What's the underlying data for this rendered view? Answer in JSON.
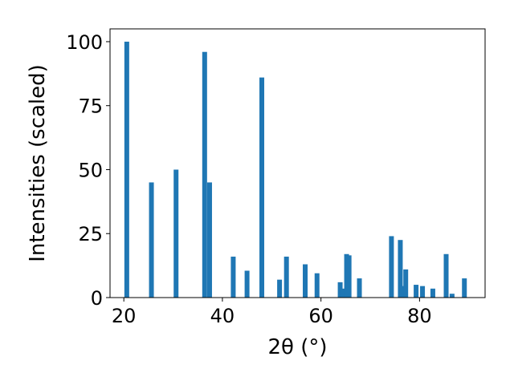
{
  "chart_data": {
    "type": "bar",
    "xlabel": "2θ (°)",
    "ylabel": "Intensities (scaled)",
    "xlim": [
      17.2,
      93.3
    ],
    "ylim": [
      0,
      105
    ],
    "xticks": [
      20,
      40,
      60,
      80
    ],
    "yticks": [
      0,
      25,
      50,
      75,
      100
    ],
    "bar_color": "#1f77b4",
    "grid": false,
    "x": [
      20.6,
      25.6,
      30.6,
      36.4,
      37.4,
      42.2,
      45.0,
      48.0,
      51.6,
      53.0,
      56.8,
      59.2,
      63.9,
      64.6,
      65.2,
      65.7,
      67.8,
      74.3,
      76.1,
      76.5,
      77.2,
      79.3,
      80.6,
      82.7,
      85.4,
      86.6,
      89.1
    ],
    "values": [
      100,
      45,
      50,
      96,
      45,
      16,
      10.5,
      86,
      7,
      16,
      13,
      9.5,
      6,
      3.5,
      17,
      16.5,
      7.5,
      24,
      22.5,
      4.5,
      11,
      5,
      4.5,
      3.5,
      17,
      1.5,
      7.5
    ]
  }
}
